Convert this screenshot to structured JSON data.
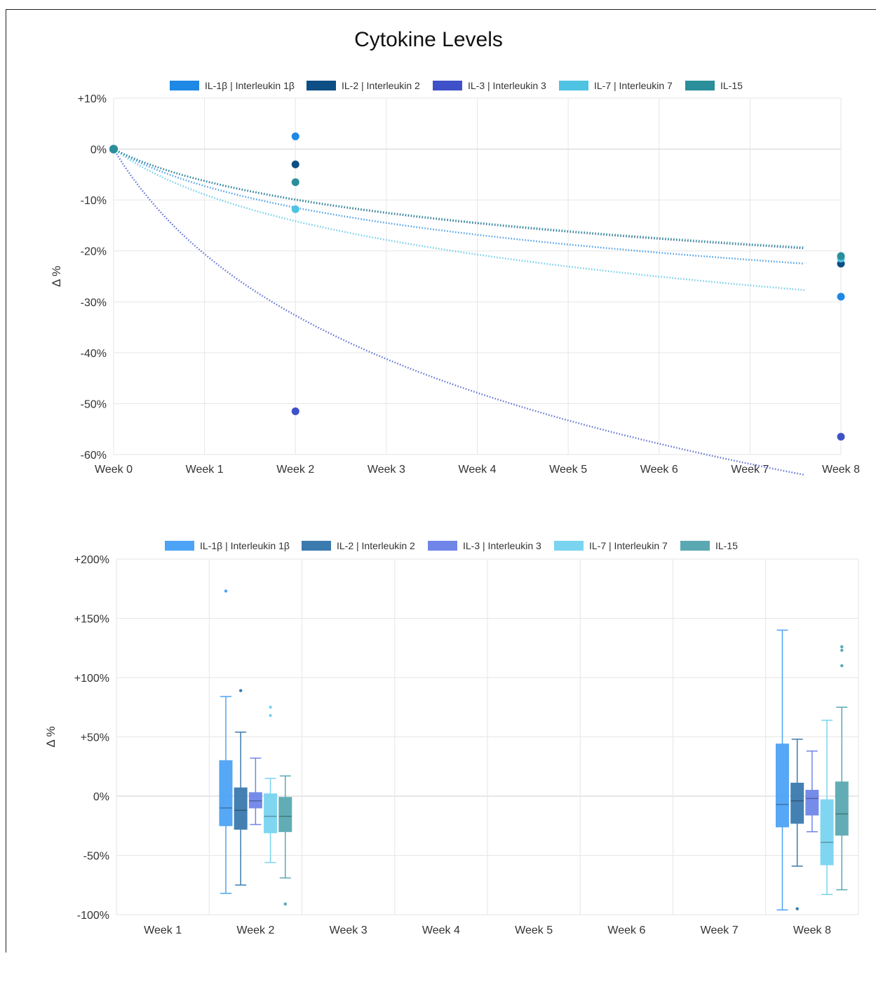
{
  "title": "Cytokine Levels",
  "colors": {
    "line": [
      "#1e88e5",
      "#0d4e84",
      "#3f51c8",
      "#4fc3e3",
      "#2a8f9a"
    ],
    "box": [
      "#4da3f5",
      "#3b7aae",
      "#6f86e8",
      "#7ad4f0",
      "#5aa9b2"
    ]
  },
  "chart_data": [
    {
      "type": "line",
      "title": "Cytokine Levels",
      "ylabel": "Δ %",
      "ylim": [
        -60,
        10
      ],
      "yticks": [
        "+10%",
        "0%",
        "-10%",
        "-20%",
        "-30%",
        "-40%",
        "-50%",
        "-60%"
      ],
      "yticks_values": [
        10,
        0,
        -10,
        -20,
        -30,
        -40,
        -50,
        -60
      ],
      "categories": [
        "Week 0",
        "Week 1",
        "Week 2",
        "Week 3",
        "Week 4",
        "Week 5",
        "Week 6",
        "Week 7",
        "Week 8"
      ],
      "grid": true,
      "legend": "top",
      "series": [
        {
          "name": "IL-1β | Interleukin 1β",
          "points": [
            [
              0,
              0
            ],
            [
              2,
              2.5
            ],
            [
              8,
              -29
            ]
          ],
          "trend_end": -22.5
        },
        {
          "name": "IL-2 | Interleukin 2",
          "points": [
            [
              0,
              0
            ],
            [
              2,
              -3
            ],
            [
              8,
              -22.5
            ]
          ],
          "trend_end": -19.5
        },
        {
          "name": "IL-3 | Interleukin 3",
          "points": [
            [
              0,
              0
            ],
            [
              2,
              -51.5
            ],
            [
              8,
              -56.5
            ]
          ],
          "trend_end": -64
        },
        {
          "name": "IL-7 | Interleukin 7",
          "points": [
            [
              0,
              0
            ],
            [
              2,
              -11.8
            ],
            [
              8,
              -21.5
            ]
          ],
          "trend_end": -27.7
        },
        {
          "name": "IL-15",
          "points": [
            [
              0,
              0
            ],
            [
              2,
              -6.5
            ],
            [
              8,
              -21
            ]
          ],
          "trend_end": -19.3
        }
      ]
    },
    {
      "type": "box",
      "ylabel": "Δ %",
      "ylim": [
        -100,
        200
      ],
      "yticks": [
        "+200%",
        "+150%",
        "+100%",
        "+50%",
        "0%",
        "-50%",
        "-100%"
      ],
      "yticks_values": [
        200,
        150,
        100,
        50,
        0,
        -50,
        -100
      ],
      "categories": [
        "Week 1",
        "Week 2",
        "Week 3",
        "Week 4",
        "Week 5",
        "Week 6",
        "Week 7",
        "Week 8"
      ],
      "grid": true,
      "legend": "top",
      "series": [
        {
          "name": "IL-1β | Interleukin 1β",
          "boxes": [
            {
              "category": 1,
              "min": -82,
              "q1": -25,
              "median": -10,
              "q3": 30,
              "max": 84,
              "outliers": [
                173
              ]
            },
            {
              "category": 7,
              "min": -96,
              "q1": -26,
              "median": -7,
              "q3": 44,
              "max": 140,
              "outliers": []
            }
          ]
        },
        {
          "name": "IL-2 | Interleukin 2",
          "boxes": [
            {
              "category": 1,
              "min": -75,
              "q1": -28,
              "median": -12,
              "q3": 7,
              "max": 54,
              "outliers": [
                89
              ]
            },
            {
              "category": 7,
              "min": -59,
              "q1": -23,
              "median": -4,
              "q3": 11,
              "max": 48,
              "outliers": [
                -95
              ]
            }
          ]
        },
        {
          "name": "IL-3 | Interleukin 3",
          "boxes": [
            {
              "category": 1,
              "min": -24,
              "q1": -10,
              "median": -4,
              "q3": 3,
              "max": 32,
              "outliers": []
            },
            {
              "category": 7,
              "min": -30,
              "q1": -16,
              "median": -2,
              "q3": 5,
              "max": 38,
              "outliers": []
            }
          ]
        },
        {
          "name": "IL-7 | Interleukin 7",
          "boxes": [
            {
              "category": 1,
              "min": -56,
              "q1": -31,
              "median": -17,
              "q3": 2,
              "max": 15,
              "outliers": [
                68,
                75
              ]
            },
            {
              "category": 7,
              "min": -83,
              "q1": -58,
              "median": -39,
              "q3": -3,
              "max": 64,
              "outliers": []
            }
          ]
        },
        {
          "name": "IL-15",
          "boxes": [
            {
              "category": 1,
              "min": -69,
              "q1": -30,
              "median": -17,
              "q3": -1,
              "max": 17,
              "outliers": [
                -91
              ]
            },
            {
              "category": 7,
              "min": -79,
              "q1": -33,
              "median": -15,
              "q3": 12,
              "max": 75,
              "outliers": [
                110,
                123,
                126
              ]
            }
          ]
        }
      ]
    }
  ]
}
